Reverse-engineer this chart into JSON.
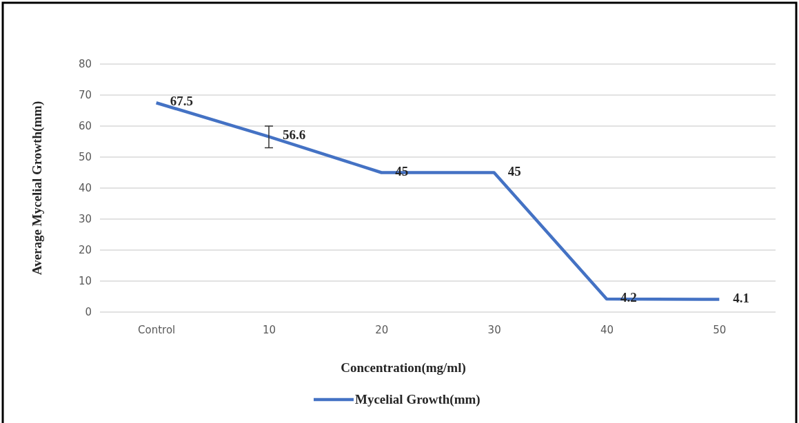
{
  "chart_data": {
    "type": "line",
    "xlabel": "Concentration(mg/ml)",
    "ylabel": "Average Mycelial Growth(mm)",
    "categories": [
      "Control",
      "10",
      "20",
      "30",
      "40",
      "50"
    ],
    "series": [
      {
        "name": "Mycelial Growth(mm)",
        "color": "#4472c4",
        "values": [
          67.5,
          56.6,
          45,
          45,
          4.2,
          4.1
        ],
        "errors": [
          null,
          [
            53,
            60
          ],
          null,
          null,
          null,
          null
        ]
      }
    ],
    "ylim": [
      0,
      80
    ],
    "yticks": [
      0,
      10,
      20,
      30,
      40,
      50,
      60,
      70,
      80
    ],
    "grid": "y",
    "legend": "bottom",
    "data_labels": true,
    "marker": "none",
    "line_style": "solid"
  }
}
